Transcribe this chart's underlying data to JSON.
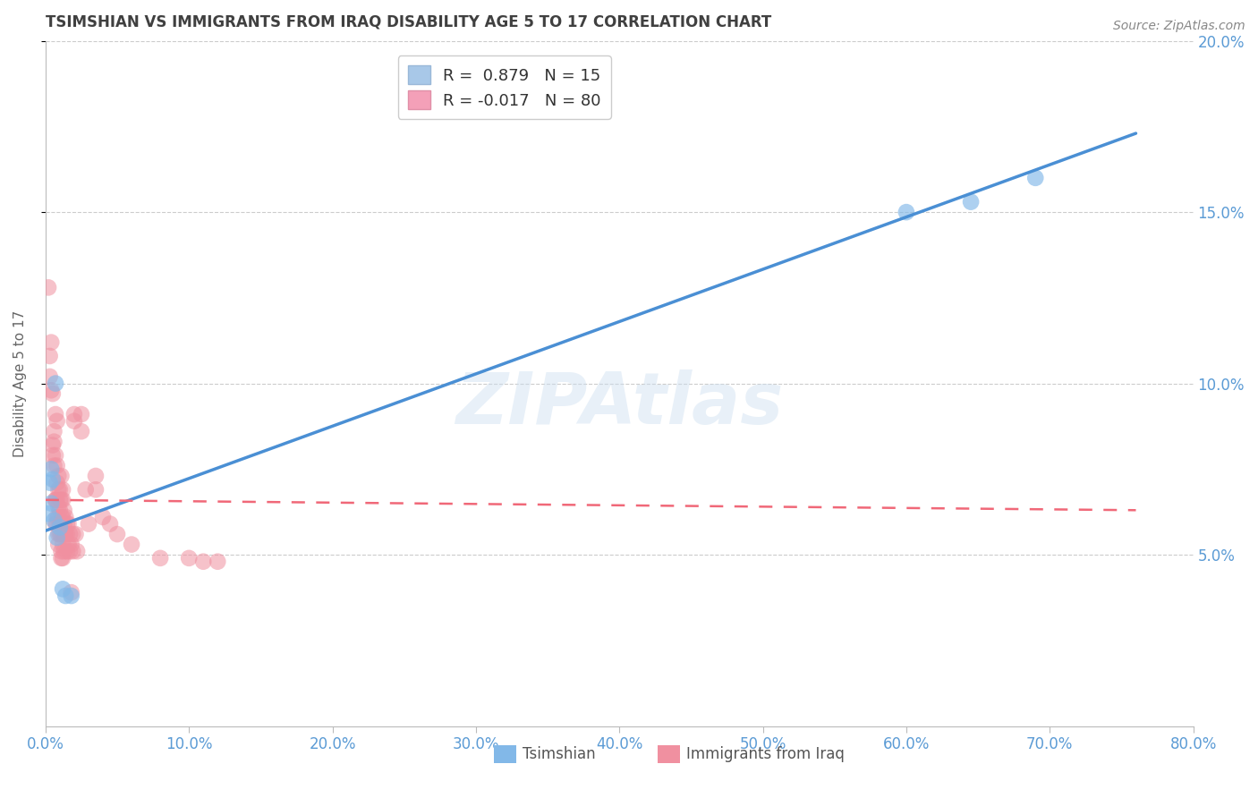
{
  "title": "TSIMSHIAN VS IMMIGRANTS FROM IRAQ DISABILITY AGE 5 TO 17 CORRELATION CHART",
  "source": "Source: ZipAtlas.com",
  "ylabel": "Disability Age 5 to 17",
  "xlim": [
    0.0,
    0.8
  ],
  "ylim": [
    0.0,
    0.2
  ],
  "xticks": [
    0.0,
    0.1,
    0.2,
    0.3,
    0.4,
    0.5,
    0.6,
    0.7,
    0.8
  ],
  "yticks_right": [
    0.05,
    0.1,
    0.15,
    0.2
  ],
  "ytick_labels_right": [
    "5.0%",
    "10.0%",
    "15.0%",
    "20.0%"
  ],
  "xtick_labels": [
    "0.0%",
    "10.0%",
    "20.0%",
    "30.0%",
    "40.0%",
    "50.0%",
    "60.0%",
    "70.0%",
    "80.0%"
  ],
  "watermark": "ZIPAtlas",
  "legend_r1": "R =  0.879",
  "legend_n1": "N = 15",
  "legend_r2": "R = -0.017",
  "legend_n2": "N = 80",
  "legend_color1": "#a8c8e8",
  "legend_color2": "#f4a0b8",
  "tsimshian_color": "#82b8e8",
  "iraq_color": "#f090a0",
  "line_tsimshian_color": "#4a8fd4",
  "line_iraq_color": "#f06878",
  "background_color": "#ffffff",
  "grid_color": "#cccccc",
  "title_color": "#404040",
  "axis_label_color": "#5b9bd5",
  "bottom_legend_label1": "Tsimshian",
  "bottom_legend_label2": "Immigrants from Iraq",
  "tsimshian_points": [
    [
      0.002,
      0.062
    ],
    [
      0.004,
      0.075
    ],
    [
      0.003,
      0.071
    ],
    [
      0.004,
      0.065
    ],
    [
      0.005,
      0.072
    ],
    [
      0.007,
      0.1
    ],
    [
      0.006,
      0.06
    ],
    [
      0.008,
      0.055
    ],
    [
      0.01,
      0.058
    ],
    [
      0.012,
      0.04
    ],
    [
      0.014,
      0.038
    ],
    [
      0.018,
      0.038
    ],
    [
      0.6,
      0.15
    ],
    [
      0.645,
      0.153
    ],
    [
      0.69,
      0.16
    ]
  ],
  "iraq_points": [
    [
      0.002,
      0.128
    ],
    [
      0.003,
      0.108
    ],
    [
      0.003,
      0.102
    ],
    [
      0.004,
      0.098
    ],
    [
      0.004,
      0.112
    ],
    [
      0.005,
      0.097
    ],
    [
      0.005,
      0.082
    ],
    [
      0.005,
      0.079
    ],
    [
      0.006,
      0.076
    ],
    [
      0.006,
      0.086
    ],
    [
      0.006,
      0.083
    ],
    [
      0.007,
      0.066
    ],
    [
      0.007,
      0.091
    ],
    [
      0.007,
      0.079
    ],
    [
      0.007,
      0.066
    ],
    [
      0.007,
      0.059
    ],
    [
      0.008,
      0.089
    ],
    [
      0.008,
      0.076
    ],
    [
      0.008,
      0.071
    ],
    [
      0.008,
      0.066
    ],
    [
      0.008,
      0.061
    ],
    [
      0.008,
      0.059
    ],
    [
      0.009,
      0.073
    ],
    [
      0.009,
      0.069
    ],
    [
      0.009,
      0.064
    ],
    [
      0.009,
      0.061
    ],
    [
      0.009,
      0.056
    ],
    [
      0.009,
      0.053
    ],
    [
      0.01,
      0.069
    ],
    [
      0.01,
      0.066
    ],
    [
      0.01,
      0.063
    ],
    [
      0.01,
      0.059
    ],
    [
      0.01,
      0.056
    ],
    [
      0.011,
      0.073
    ],
    [
      0.011,
      0.066
    ],
    [
      0.011,
      0.061
    ],
    [
      0.011,
      0.056
    ],
    [
      0.011,
      0.051
    ],
    [
      0.011,
      0.049
    ],
    [
      0.012,
      0.069
    ],
    [
      0.012,
      0.066
    ],
    [
      0.012,
      0.061
    ],
    [
      0.012,
      0.056
    ],
    [
      0.012,
      0.053
    ],
    [
      0.012,
      0.049
    ],
    [
      0.013,
      0.063
    ],
    [
      0.013,
      0.059
    ],
    [
      0.013,
      0.056
    ],
    [
      0.013,
      0.051
    ],
    [
      0.014,
      0.061
    ],
    [
      0.014,
      0.056
    ],
    [
      0.015,
      0.059
    ],
    [
      0.015,
      0.056
    ],
    [
      0.015,
      0.051
    ],
    [
      0.016,
      0.059
    ],
    [
      0.016,
      0.053
    ],
    [
      0.017,
      0.056
    ],
    [
      0.017,
      0.051
    ],
    [
      0.018,
      0.053
    ],
    [
      0.018,
      0.039
    ],
    [
      0.019,
      0.056
    ],
    [
      0.019,
      0.051
    ],
    [
      0.02,
      0.091
    ],
    [
      0.02,
      0.089
    ],
    [
      0.021,
      0.056
    ],
    [
      0.022,
      0.051
    ],
    [
      0.025,
      0.091
    ],
    [
      0.025,
      0.086
    ],
    [
      0.028,
      0.069
    ],
    [
      0.03,
      0.059
    ],
    [
      0.035,
      0.073
    ],
    [
      0.035,
      0.069
    ],
    [
      0.04,
      0.061
    ],
    [
      0.045,
      0.059
    ],
    [
      0.05,
      0.056
    ],
    [
      0.06,
      0.053
    ],
    [
      0.08,
      0.049
    ],
    [
      0.1,
      0.049
    ],
    [
      0.11,
      0.048
    ],
    [
      0.12,
      0.048
    ]
  ],
  "tsimshian_line": {
    "x0": 0.0,
    "y0": 0.057,
    "x1": 0.76,
    "y1": 0.173
  },
  "iraq_line": {
    "x0": 0.0,
    "y0": 0.066,
    "x1": 0.76,
    "y1": 0.063
  }
}
